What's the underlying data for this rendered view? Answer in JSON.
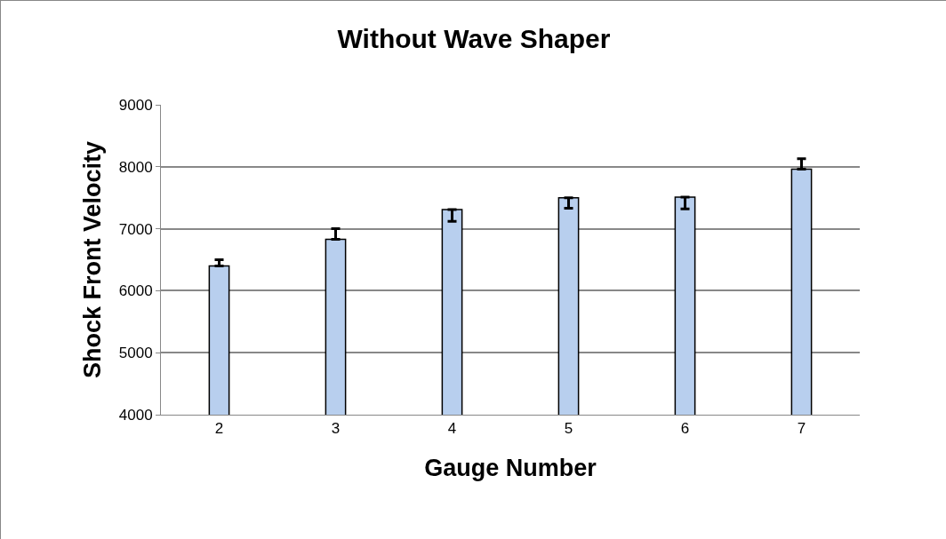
{
  "chart_data": {
    "type": "bar",
    "title": "Without Wave Shaper",
    "xlabel": "Gauge Number",
    "ylabel": "Shock Front Velocity",
    "categories": [
      "2",
      "3",
      "4",
      "5",
      "6",
      "7"
    ],
    "values": [
      6400,
      6830,
      7310,
      7500,
      7510,
      7960
    ],
    "errors": [
      [
        6400,
        6500
      ],
      [
        6830,
        7000
      ],
      [
        7120,
        7310
      ],
      [
        7330,
        7500
      ],
      [
        7320,
        7510
      ],
      [
        7960,
        8130
      ]
    ],
    "color": "#b8cfee",
    "ylim": [
      4000,
      9000
    ],
    "yticks": [
      4000,
      5000,
      6000,
      7000,
      8000,
      9000
    ],
    "grid": "y"
  }
}
